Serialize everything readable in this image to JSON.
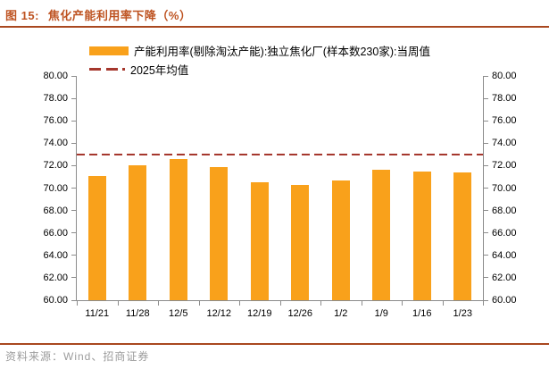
{
  "header": {
    "figure_label": "图 15:",
    "title": "焦化产能利用率下降（%）"
  },
  "legend": {
    "series_label": "产能利用率(剔除淘汰产能):独立焦化厂(样本数230家):当周值",
    "average_label": "2025年均值"
  },
  "chart_data": {
    "type": "bar",
    "title": "焦化产能利用率下降（%）",
    "categories": [
      "11/21",
      "11/28",
      "12/5",
      "12/12",
      "12/19",
      "12/26",
      "1/2",
      "1/9",
      "1/16",
      "1/23"
    ],
    "series": [
      {
        "name": "产能利用率(剔除淘汰产能):独立焦化厂(样本数230家):当周值",
        "values": [
          71.1,
          72.0,
          72.6,
          71.9,
          70.5,
          70.3,
          70.7,
          71.6,
          71.5,
          71.4
        ]
      }
    ],
    "average_line": {
      "label": "2025年均值",
      "value": 73.0
    },
    "xlabel": "",
    "ylabel": "",
    "ylim": [
      60,
      80
    ],
    "ytick_step": 2,
    "ytick_labels": [
      "80.00",
      "78.00",
      "76.00",
      "74.00",
      "72.00",
      "70.00",
      "68.00",
      "66.00",
      "64.00",
      "62.00",
      "60.00"
    ],
    "dual_y_axis": true,
    "grid": false,
    "legend_position": "top-left",
    "bar_color": "#F9A11B",
    "line_color": "#A5372D"
  },
  "footer": {
    "source": "资料来源：Wind、招商证券"
  },
  "colors": {
    "title": "#BE5321",
    "rule": "#A9481F",
    "bar": "#F9A11B",
    "average_line": "#A5372D",
    "axis": "#8C8C8C",
    "footer_text": "#9C9C9C"
  }
}
